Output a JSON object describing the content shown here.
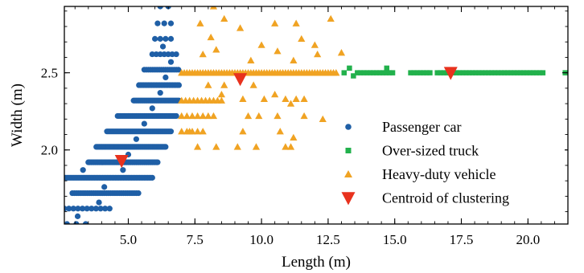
{
  "chart_data": {
    "type": "scatter",
    "title": "",
    "xlabel": "Length (m)",
    "ylabel": "Width (m)",
    "xlim": [
      2.6,
      21.5
    ],
    "ylim": [
      1.52,
      2.93
    ],
    "x_ticks": [
      5.0,
      7.5,
      10.0,
      12.5,
      15.0,
      17.5,
      20.0
    ],
    "x_tick_labels": [
      "5.0",
      "7.5",
      "10.0",
      "12.5",
      "15.0",
      "17.5",
      "20.0"
    ],
    "y_ticks": [
      2.0,
      2.5
    ],
    "y_tick_labels": [
      "2.0",
      "2.5"
    ],
    "grid": false,
    "legend_position": "lower-right",
    "colors": {
      "passenger": "#1f5fa6",
      "truck": "#22b14c",
      "heavy": "#f0a323",
      "centroid": "#e8321e"
    },
    "series": [
      {
        "name": "Passenger car",
        "marker": "circle",
        "color": "#1f5fa6",
        "bands": [
          {
            "y": 1.52,
            "x_start": 2.7,
            "x_end": 3.4,
            "step": 0.35
          },
          {
            "y": 1.62,
            "x_start": 2.6,
            "x_end": 4.3,
            "step": 0.17
          },
          {
            "y": 1.72,
            "x_start": 2.9,
            "x_end": 5.4,
            "step": 0.08
          },
          {
            "y": 1.82,
            "x_start": 2.6,
            "x_end": 5.9,
            "step": 0.06
          },
          {
            "y": 1.92,
            "x_start": 3.5,
            "x_end": 6.1,
            "step": 0.05
          },
          {
            "y": 2.02,
            "x_start": 3.8,
            "x_end": 6.4,
            "step": 0.05
          },
          {
            "y": 2.12,
            "x_start": 4.2,
            "x_end": 6.6,
            "step": 0.05
          },
          {
            "y": 2.22,
            "x_start": 4.6,
            "x_end": 6.8,
            "step": 0.05
          },
          {
            "y": 2.32,
            "x_start": 5.2,
            "x_end": 6.9,
            "step": 0.05
          },
          {
            "y": 2.42,
            "x_start": 5.4,
            "x_end": 6.9,
            "step": 0.06
          },
          {
            "y": 2.52,
            "x_start": 5.6,
            "x_end": 6.9,
            "step": 0.08
          },
          {
            "y": 2.62,
            "x_start": 5.9,
            "x_end": 6.8,
            "step": 0.15
          },
          {
            "y": 2.72,
            "x_start": 6.0,
            "x_end": 6.7,
            "step": 0.2
          },
          {
            "y": 2.82,
            "x_start": 6.1,
            "x_end": 6.6,
            "step": 0.25
          },
          {
            "y": 2.93,
            "x_start": 6.2,
            "x_end": 6.5,
            "step": 0.3
          }
        ],
        "points": [
          [
            3.1,
            1.57
          ],
          [
            3.9,
            1.66
          ],
          [
            4.1,
            1.76
          ],
          [
            3.3,
            1.87
          ],
          [
            4.8,
            1.87
          ],
          [
            5.0,
            1.97
          ],
          [
            5.3,
            2.07
          ],
          [
            5.6,
            2.17
          ],
          [
            5.9,
            2.27
          ],
          [
            6.2,
            2.37
          ],
          [
            6.4,
            2.47
          ],
          [
            6.6,
            2.57
          ],
          [
            6.3,
            2.67
          ]
        ]
      },
      {
        "name": "Over-sized truck",
        "marker": "square",
        "color": "#22b14c",
        "bands": [
          {
            "y": 2.5,
            "x_start": 13.6,
            "x_end": 15.0,
            "step": 0.12
          },
          {
            "y": 2.5,
            "x_start": 15.6,
            "x_end": 16.4,
            "step": 0.12
          },
          {
            "y": 2.5,
            "x_start": 16.6,
            "x_end": 20.6,
            "step": 0.12
          }
        ],
        "points": [
          [
            13.1,
            2.5
          ],
          [
            13.3,
            2.53
          ],
          [
            13.45,
            2.48
          ],
          [
            14.7,
            2.53
          ],
          [
            21.4,
            2.5
          ]
        ]
      },
      {
        "name": "Heavy-duty vehicle",
        "marker": "triangle-up",
        "color": "#f0a323",
        "bands": [
          {
            "y": 2.5,
            "x_start": 7.0,
            "x_end": 12.8,
            "step": 0.1
          },
          {
            "y": 2.32,
            "x_start": 7.0,
            "x_end": 8.5,
            "step": 0.15
          },
          {
            "y": 2.22,
            "x_start": 7.0,
            "x_end": 8.2,
            "step": 0.2
          },
          {
            "y": 2.12,
            "x_start": 7.0,
            "x_end": 7.8,
            "step": 0.2
          }
        ],
        "points": [
          [
            7.7,
            2.82
          ],
          [
            8.1,
            2.73
          ],
          [
            8.3,
            2.65
          ],
          [
            7.8,
            2.62
          ],
          [
            8.2,
            2.93
          ],
          [
            8.6,
            2.85
          ],
          [
            9.2,
            2.79
          ],
          [
            10.5,
            2.82
          ],
          [
            11.3,
            2.82
          ],
          [
            11.5,
            2.72
          ],
          [
            10.0,
            2.68
          ],
          [
            10.6,
            2.64
          ],
          [
            12.1,
            2.62
          ],
          [
            9.6,
            2.58
          ],
          [
            11.2,
            2.58
          ],
          [
            12.0,
            2.68
          ],
          [
            12.6,
            2.85
          ],
          [
            13.0,
            2.63
          ],
          [
            8.0,
            2.42
          ],
          [
            8.6,
            2.42
          ],
          [
            9.7,
            2.42
          ],
          [
            8.5,
            2.36
          ],
          [
            9.3,
            2.33
          ],
          [
            10.1,
            2.33
          ],
          [
            10.9,
            2.33
          ],
          [
            11.3,
            2.33
          ],
          [
            10.5,
            2.36
          ],
          [
            11.1,
            2.3
          ],
          [
            11.6,
            2.33
          ],
          [
            9.5,
            2.22
          ],
          [
            9.9,
            2.22
          ],
          [
            10.6,
            2.22
          ],
          [
            11.6,
            2.22
          ],
          [
            7.3,
            2.12
          ],
          [
            9.3,
            2.12
          ],
          [
            10.7,
            2.12
          ],
          [
            11.2,
            2.08
          ],
          [
            7.6,
            2.02
          ],
          [
            8.3,
            2.02
          ],
          [
            9.1,
            2.02
          ],
          [
            9.8,
            2.02
          ],
          [
            10.9,
            2.02
          ],
          [
            11.1,
            2.02
          ],
          [
            12.3,
            2.2
          ]
        ]
      },
      {
        "name": "Centroid of clustering",
        "marker": "triangle-down",
        "color": "#e8321e",
        "points": [
          [
            4.75,
            1.93
          ],
          [
            9.2,
            2.46
          ],
          [
            17.1,
            2.5
          ]
        ]
      }
    ]
  }
}
